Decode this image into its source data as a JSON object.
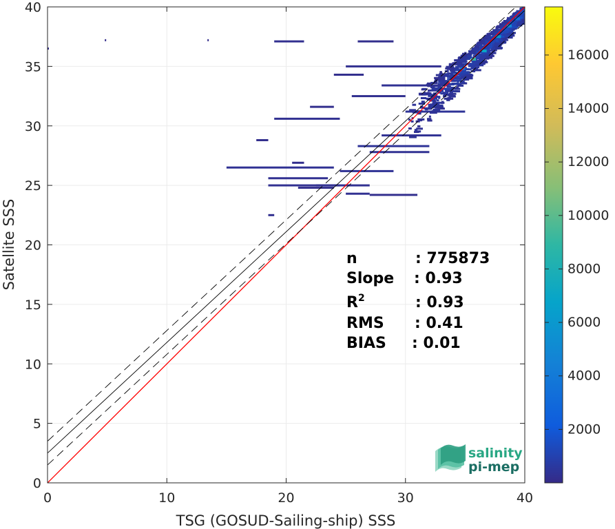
{
  "chart_data": {
    "type": "heatmap",
    "title": "",
    "xlabel": "TSG (GOSUD-Sailing-ship) SSS",
    "ylabel": "Satellite SSS",
    "xlim": [
      0,
      40
    ],
    "ylim": [
      0,
      40
    ],
    "xticks": [
      0,
      10,
      20,
      30,
      40
    ],
    "yticks": [
      0,
      5,
      10,
      15,
      20,
      25,
      30,
      35,
      40
    ],
    "grid": true,
    "colorbar": {
      "range": [
        0,
        17800
      ],
      "ticks": [
        2000,
        4000,
        6000,
        8000,
        10000,
        12000,
        14000,
        16000
      ],
      "colormap": "parula"
    },
    "lines": [
      {
        "kind": "one-to-one",
        "color": "#ff0000",
        "intercept": 0,
        "slope": 1
      },
      {
        "kind": "regression",
        "color": "#000000",
        "intercept": 2.5,
        "slope": 0.93
      },
      {
        "kind": "regression-upper",
        "color": "#000000",
        "dashed": true,
        "intercept": 3.5,
        "slope": 0.93
      },
      {
        "kind": "regression-lower",
        "color": "#000000",
        "dashed": true,
        "intercept": 1.5,
        "slope": 0.93
      }
    ],
    "density_streaks": [
      {
        "x0": 26.0,
        "x1": 29.0,
        "y": 37.1,
        "c": 150
      },
      {
        "x0": 19.0,
        "x1": 21.5,
        "y": 37.1,
        "c": 200
      },
      {
        "x0": 25.0,
        "x1": 33.0,
        "y": 35.0,
        "c": 200
      },
      {
        "x0": 24.0,
        "x1": 26.5,
        "y": 34.3,
        "c": 150
      },
      {
        "x0": 28.0,
        "x1": 33.5,
        "y": 33.4,
        "c": 300
      },
      {
        "x0": 25.5,
        "x1": 30.0,
        "y": 32.5,
        "c": 200
      },
      {
        "x0": 22.0,
        "x1": 24.0,
        "y": 31.6,
        "c": 150
      },
      {
        "x0": 30.0,
        "x1": 35.0,
        "y": 31.2,
        "c": 400
      },
      {
        "x0": 19.0,
        "x1": 24.5,
        "y": 30.6,
        "c": 250
      },
      {
        "x0": 28.0,
        "x1": 33.0,
        "y": 29.2,
        "c": 300
      },
      {
        "x0": 26.0,
        "x1": 32.0,
        "y": 28.3,
        "c": 400
      },
      {
        "x0": 27.0,
        "x1": 32.0,
        "y": 27.8,
        "c": 300
      },
      {
        "x0": 15.0,
        "x1": 18.5,
        "y": 26.5,
        "c": 300
      },
      {
        "x0": 18.5,
        "x1": 24.0,
        "y": 26.5,
        "c": 300
      },
      {
        "x0": 24.5,
        "x1": 29.0,
        "y": 26.2,
        "c": 350
      },
      {
        "x0": 18.5,
        "x1": 23.5,
        "y": 25.6,
        "c": 250
      },
      {
        "x0": 22.5,
        "x1": 27.0,
        "y": 25.0,
        "c": 250
      },
      {
        "x0": 18.5,
        "x1": 24.5,
        "y": 25.0,
        "c": 250
      },
      {
        "x0": 25.0,
        "x1": 27.0,
        "y": 24.3,
        "c": 250
      },
      {
        "x0": 21.0,
        "x1": 24.0,
        "y": 24.8,
        "c": 150
      },
      {
        "x0": 27.0,
        "x1": 31.0,
        "y": 24.2,
        "c": 150
      },
      {
        "x0": 17.5,
        "x1": 18.5,
        "y": 28.8,
        "c": 150
      },
      {
        "x0": 20.5,
        "x1": 21.5,
        "y": 26.9,
        "c": 150
      },
      {
        "x0": 18.5,
        "x1": 19.0,
        "y": 22.5,
        "c": 200
      },
      {
        "x0": 0.0,
        "x1": 0.1,
        "y": 36.5,
        "c": 100
      },
      {
        "x0": 4.8,
        "x1": 4.9,
        "y": 37.2,
        "c": 100
      },
      {
        "x0": 13.4,
        "x1": 13.5,
        "y": 37.2,
        "c": 100
      }
    ],
    "stats": [
      {
        "label": "n",
        "value": ": 775873"
      },
      {
        "label": "Slope",
        "value": ": 0.93"
      },
      {
        "label": "R",
        "sup": "2",
        "value": ": 0.93"
      },
      {
        "label": "RMS",
        "value": ": 0.41"
      },
      {
        "label": "BIAS",
        "value": ": 0.01"
      }
    ]
  },
  "logo": {
    "line1": "salinity",
    "line2": "pi-mep"
  }
}
